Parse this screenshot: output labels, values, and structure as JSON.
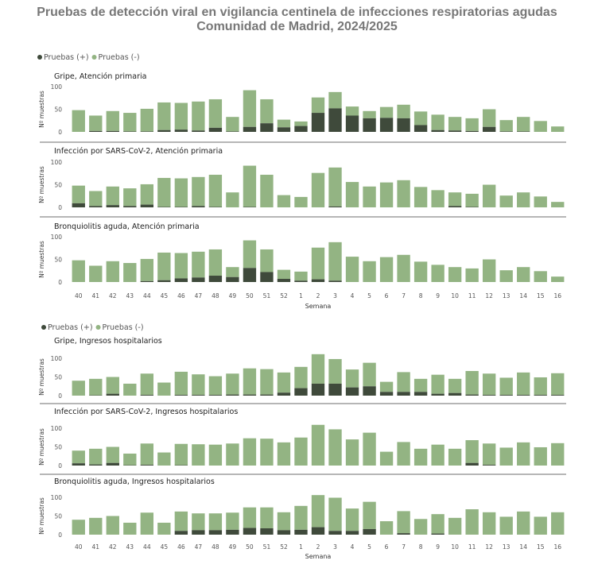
{
  "title_line1": "Pruebas de detección viral en vigilancia centinela de infecciones respiratorias agudas",
  "title_line2": "Comunidad de Madrid, 2024/2025",
  "colors": {
    "positive": "#3f4a3b",
    "negative": "#93b483",
    "separator": "#8a8a8a"
  },
  "chart_data": [
    {
      "type": "bar",
      "stacked": true,
      "legend": [
        "Pruebas (+)",
        "Pruebas (-)"
      ],
      "legend_position": "top-left",
      "xlabel": "Semana",
      "categories": [
        "40",
        "41",
        "42",
        "43",
        "44",
        "45",
        "46",
        "47",
        "48",
        "49",
        "50",
        "51",
        "52",
        "1",
        "2",
        "3",
        "4",
        "5",
        "6",
        "7",
        "8",
        "9",
        "10",
        "11",
        "12",
        "13",
        "14",
        "15",
        "16"
      ],
      "panels": [
        {
          "title": "Gripe, Atención primaria",
          "ylabel": "Nº muestras",
          "ylim": [
            0,
            100
          ],
          "yticks": [
            0,
            50,
            100
          ],
          "total": [
            48,
            36,
            46,
            42,
            51,
            65,
            64,
            67,
            72,
            33,
            92,
            72,
            27,
            23,
            76,
            88,
            56,
            46,
            55,
            60,
            45,
            38,
            33,
            30,
            50,
            26,
            33,
            24,
            12
          ],
          "positive": [
            0,
            2,
            2,
            1,
            1,
            4,
            5,
            3,
            9,
            1,
            11,
            19,
            10,
            13,
            42,
            52,
            36,
            30,
            31,
            30,
            15,
            4,
            3,
            2,
            11,
            1,
            1,
            0,
            0
          ]
        },
        {
          "title": "Infección por SARS-CoV-2, Atención primaria",
          "ylabel": "Nº muestras",
          "ylim": [
            0,
            100
          ],
          "yticks": [
            0,
            50,
            100
          ],
          "total": [
            48,
            36,
            46,
            42,
            51,
            65,
            64,
            67,
            72,
            33,
            92,
            72,
            27,
            23,
            76,
            88,
            56,
            46,
            55,
            60,
            45,
            38,
            33,
            30,
            50,
            26,
            33,
            24,
            12
          ],
          "positive": [
            9,
            3,
            5,
            3,
            6,
            1,
            1,
            3,
            1,
            0,
            1,
            0,
            0,
            0,
            0,
            2,
            0,
            0,
            0,
            0,
            0,
            0,
            3,
            1,
            0,
            0,
            0,
            0,
            0
          ]
        },
        {
          "title": "Bronquiolitis aguda, Atención primaria",
          "ylabel": "Nº muestras",
          "ylim": [
            0,
            100
          ],
          "yticks": [
            0,
            50,
            100
          ],
          "total": [
            48,
            36,
            46,
            42,
            51,
            65,
            64,
            67,
            72,
            33,
            92,
            72,
            27,
            23,
            76,
            88,
            56,
            46,
            55,
            60,
            45,
            38,
            33,
            30,
            50,
            26,
            33,
            24,
            12
          ],
          "positive": [
            0,
            0,
            0,
            0,
            2,
            4,
            8,
            10,
            14,
            11,
            31,
            22,
            7,
            3,
            6,
            3,
            0,
            0,
            0,
            0,
            0,
            0,
            0,
            0,
            0,
            0,
            0,
            0,
            0
          ]
        }
      ]
    },
    {
      "type": "bar",
      "stacked": true,
      "legend": [
        "Pruebas (+)",
        "Pruebas (-)"
      ],
      "legend_position": "top-left",
      "xlabel": "Semana",
      "categories": [
        "40",
        "41",
        "42",
        "43",
        "44",
        "45",
        "46",
        "47",
        "48",
        "49",
        "50",
        "51",
        "52",
        "1",
        "2",
        "3",
        "4",
        "5",
        "6",
        "7",
        "8",
        "9",
        "10",
        "11",
        "12",
        "13",
        "14",
        "15",
        "16"
      ],
      "panels": [
        {
          "title": "Gripe, Ingresos hospitalarios",
          "ylabel": "Nº muestras",
          "ylim": [
            0,
            100
          ],
          "yticks": [
            0,
            50,
            100
          ],
          "total": [
            40,
            45,
            50,
            32,
            59,
            35,
            64,
            57,
            52,
            59,
            73,
            71,
            62,
            77,
            111,
            98,
            70,
            88,
            37,
            63,
            45,
            56,
            45,
            66,
            59,
            48,
            62,
            49,
            60
          ],
          "positive": [
            0,
            1,
            5,
            0,
            2,
            0,
            2,
            2,
            2,
            3,
            3,
            3,
            8,
            20,
            32,
            32,
            22,
            25,
            10,
            10,
            10,
            5,
            7,
            3,
            2,
            2,
            2,
            2,
            2
          ]
        },
        {
          "title": "Infección por SARS-CoV-2, Ingresos hospitalarios",
          "ylabel": "Nº muestras",
          "ylim": [
            0,
            100
          ],
          "yticks": [
            0,
            50,
            100
          ],
          "total": [
            40,
            45,
            50,
            32,
            59,
            35,
            58,
            57,
            56,
            59,
            73,
            72,
            62,
            75,
            109,
            97,
            70,
            88,
            37,
            63,
            45,
            56,
            45,
            68,
            59,
            48,
            62,
            49,
            60
          ],
          "positive": [
            6,
            3,
            7,
            1,
            2,
            0,
            1,
            0,
            0,
            0,
            0,
            0,
            0,
            0,
            0,
            0,
            0,
            0,
            0,
            0,
            0,
            0,
            0,
            7,
            2,
            0,
            0,
            0,
            0
          ]
        },
        {
          "title": "Bronquiolitis aguda, Ingresos hospitalarios",
          "ylabel": "Nº muestras",
          "ylim": [
            0,
            100
          ],
          "yticks": [
            0,
            50,
            100
          ],
          "total": [
            40,
            45,
            50,
            32,
            59,
            32,
            62,
            57,
            57,
            59,
            73,
            73,
            60,
            77,
            106,
            99,
            70,
            88,
            36,
            63,
            42,
            55,
            45,
            68,
            60,
            48,
            62,
            48,
            60
          ],
          "positive": [
            0,
            0,
            0,
            0,
            0,
            0,
            10,
            12,
            12,
            13,
            18,
            17,
            12,
            13,
            20,
            10,
            10,
            15,
            0,
            4,
            0,
            3,
            0,
            0,
            0,
            0,
            0,
            0,
            0
          ]
        }
      ]
    }
  ]
}
